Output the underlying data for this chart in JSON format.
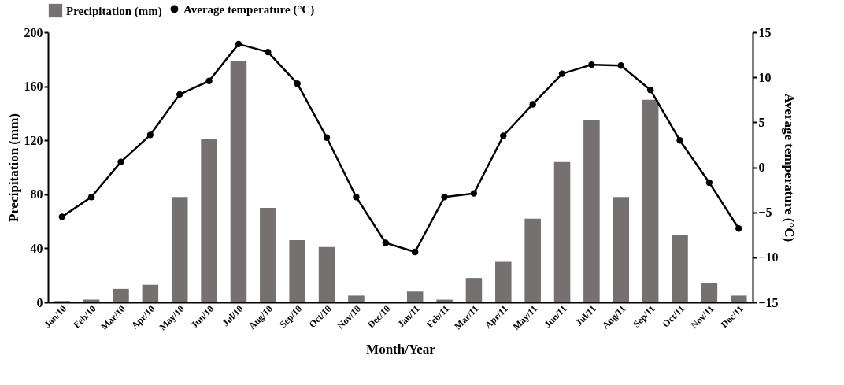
{
  "chart_data": {
    "type": "bar",
    "xlabel": "Month/Year",
    "ylabel": "Precipitation (mm)",
    "y2label": "Average temperature (°C)",
    "categories": [
      "Jan/10",
      "Feb/10",
      "Mar/10",
      "Apr/10",
      "May/10",
      "Jun/10",
      "Jul/10",
      "Aug/10",
      "Sep/10",
      "Oct/10",
      "Nov/10",
      "Dec/10",
      "Jan/11",
      "Feb/11",
      "Mar/11",
      "Apr/11",
      "May/11",
      "Jun/11",
      "Jul/11",
      "Aug/11",
      "Sep/11",
      "Oct/11",
      "Nov/11",
      "Dec/11"
    ],
    "series": [
      {
        "name": "Precipitation (mm)",
        "color": "#767171",
        "values": [
          1,
          2,
          10,
          13,
          78,
          121,
          179,
          70,
          46,
          41,
          5,
          0,
          8,
          2,
          18,
          30,
          62,
          104,
          135,
          78,
          150,
          50,
          14,
          5
        ]
      },
      {
        "name": "Average temperature (°C)",
        "type": "line",
        "axis": "y2",
        "color": "#000000",
        "values": [
          -5.5,
          -3.3,
          0.6,
          3.6,
          8.1,
          9.6,
          13.7,
          12.8,
          9.3,
          3.3,
          -3.3,
          -8.4,
          -9.4,
          -3.3,
          -2.9,
          3.5,
          7.0,
          10.4,
          11.4,
          11.3,
          8.6,
          3.0,
          -1.7,
          -6.8
        ]
      }
    ],
    "ylim": [
      0,
      200
    ],
    "yticks": [
      0,
      40,
      80,
      120,
      160,
      200
    ],
    "y2lim": [
      -15,
      15
    ],
    "y2ticks": [
      -15,
      -10,
      -5,
      0,
      5,
      10,
      15
    ],
    "marker": "circle",
    "legend": "top"
  }
}
